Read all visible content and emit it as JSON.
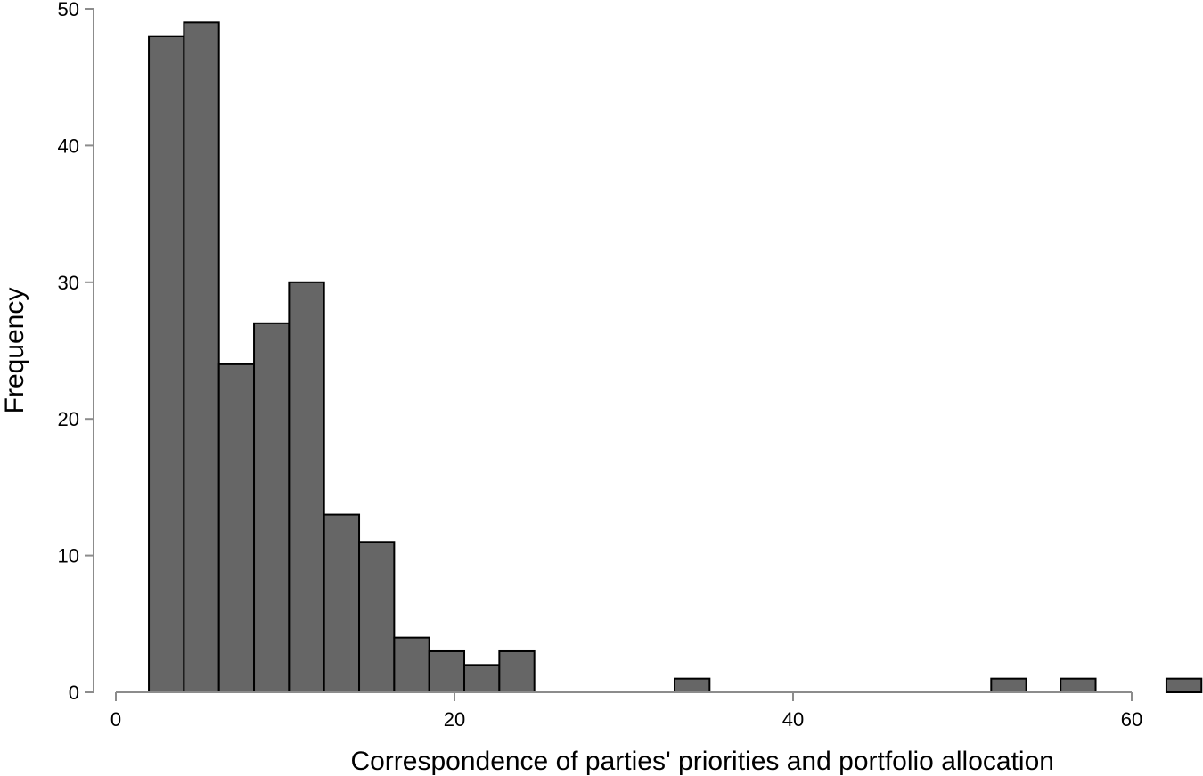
{
  "chart_data": {
    "type": "bar",
    "title": "",
    "xlabel": "Correspondence of parties' priorities and portfolio allocation",
    "ylabel": "Frequency",
    "xlim": [
      0,
      64
    ],
    "ylim": [
      0,
      50
    ],
    "x_ticks": [
      0,
      20,
      40,
      60
    ],
    "y_ticks": [
      0,
      10,
      20,
      30,
      40,
      50
    ],
    "bin_width": 2.07,
    "bar_color": "#666666",
    "grid": false,
    "legend": "none",
    "bins": [
      {
        "x0": 1.95,
        "x1": 4.02,
        "value": 48
      },
      {
        "x0": 4.02,
        "x1": 6.09,
        "value": 49
      },
      {
        "x0": 6.09,
        "x1": 8.16,
        "value": 24
      },
      {
        "x0": 8.16,
        "x1": 10.23,
        "value": 27
      },
      {
        "x0": 10.23,
        "x1": 12.3,
        "value": 30
      },
      {
        "x0": 12.3,
        "x1": 14.37,
        "value": 13
      },
      {
        "x0": 14.37,
        "x1": 16.44,
        "value": 11
      },
      {
        "x0": 16.44,
        "x1": 18.51,
        "value": 4
      },
      {
        "x0": 18.51,
        "x1": 20.58,
        "value": 3
      },
      {
        "x0": 20.58,
        "x1": 22.65,
        "value": 2
      },
      {
        "x0": 22.65,
        "x1": 24.72,
        "value": 3
      },
      {
        "x0": 33.0,
        "x1": 35.07,
        "value": 1
      },
      {
        "x0": 51.7,
        "x1": 53.77,
        "value": 1
      },
      {
        "x0": 55.8,
        "x1": 57.87,
        "value": 1
      },
      {
        "x0": 62.05,
        "x1": 64.12,
        "value": 1
      }
    ]
  }
}
